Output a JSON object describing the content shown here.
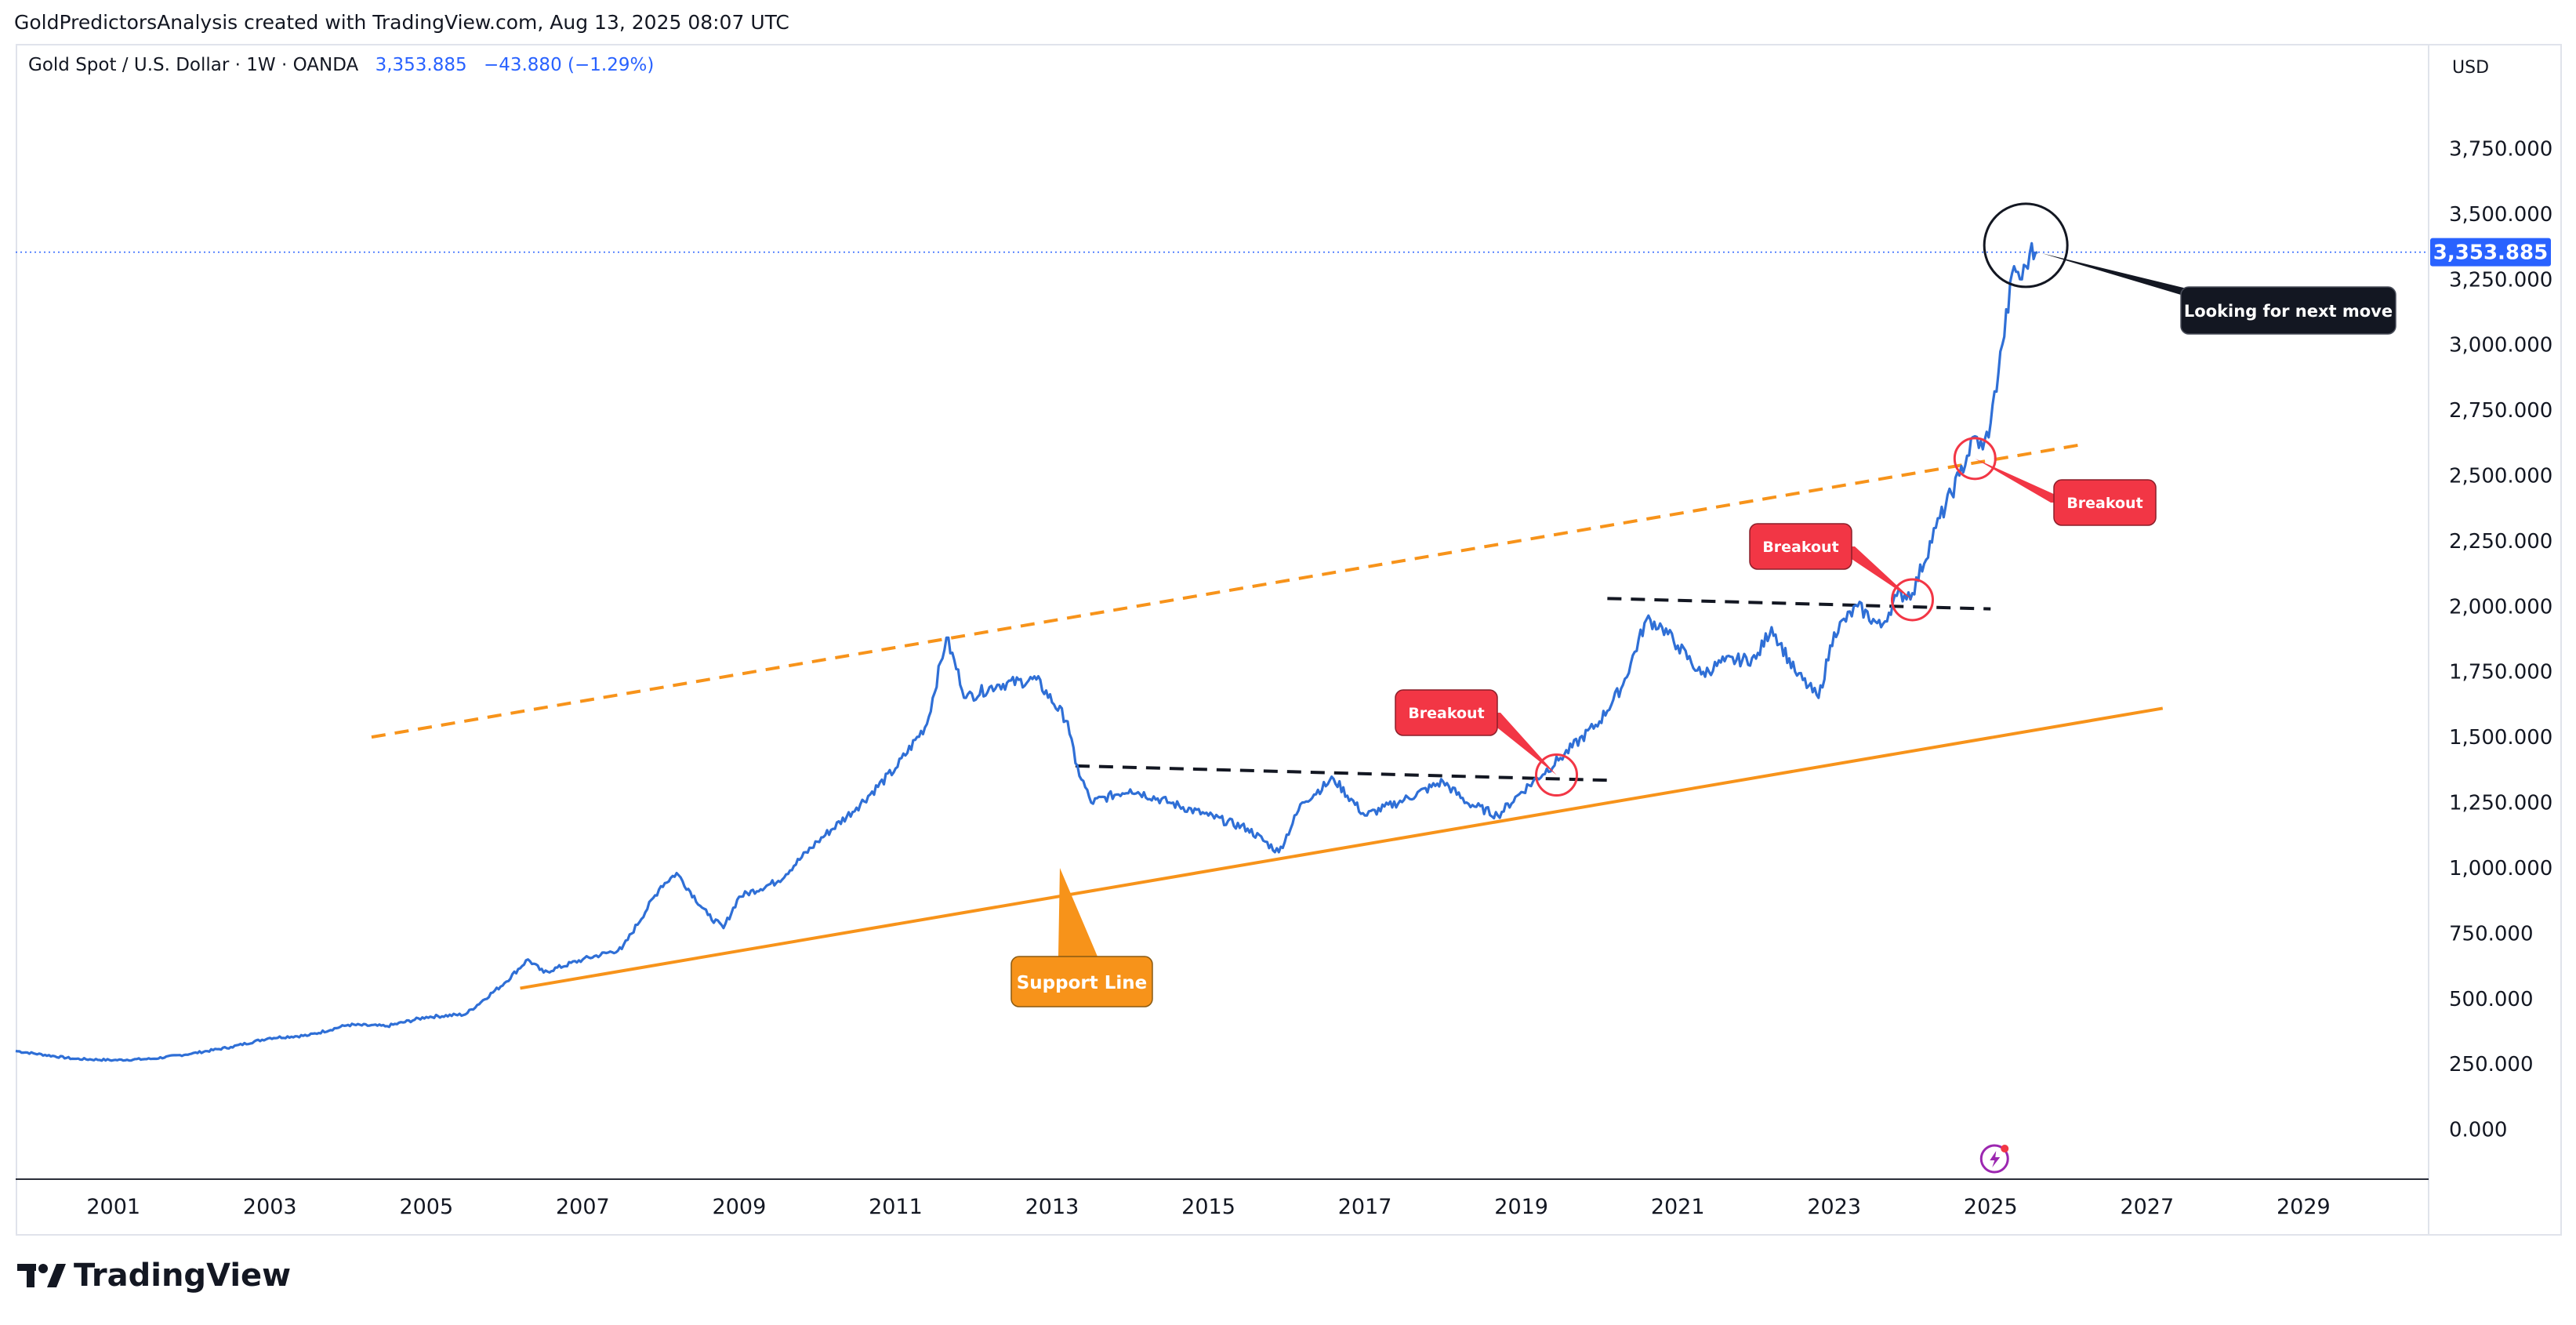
{
  "header": {
    "caption": "GoldPredictorsAnalysis created with TradingView.com, Aug 13, 2025 08:07 UTC"
  },
  "legend": {
    "symbol": "Gold Spot / U.S. Dollar · 1W · OANDA",
    "price": "3,353.885",
    "change": "−43.880 (−1.29%)"
  },
  "axis": {
    "currency": "USD",
    "price_label": "3,353.885"
  },
  "branding": {
    "logo_text": "TradingView"
  },
  "colors": {
    "price_line": "#2f6fd6",
    "support": "#f7931a",
    "annotation_red": "#f23645",
    "annotation_dark": "#131722",
    "accent_blue": "#2962ff"
  },
  "annotations": {
    "support_label": "Support Line",
    "breakout_label": "Breakout",
    "next_move_label": "Looking for next move"
  },
  "chart_data": {
    "type": "line",
    "title": "Gold Spot / U.S. Dollar · 1W · OANDA",
    "x_ticks": [
      "2001",
      "2003",
      "2005",
      "2007",
      "2009",
      "2011",
      "2013",
      "2015",
      "2017",
      "2019",
      "2021",
      "2023",
      "2025",
      "2027",
      "2029"
    ],
    "y_ticks": [
      "0.000",
      "250.000",
      "500.000",
      "750.000",
      "1,000.000",
      "1,250.000",
      "1,500.000",
      "1,750.000",
      "2,000.000",
      "2,250.000",
      "2,500.000",
      "2,750.000",
      "3,000.000",
      "3,250.000",
      "3,500.000",
      "3,750.000"
    ],
    "xlim": [
      1999.75,
      2030.6
    ],
    "ylim": [
      -190,
      4150
    ],
    "series": [
      {
        "x": [
          1999.75,
          2000.5,
          2001.0,
          2001.5,
          2002.0,
          2002.5,
          2003.0,
          2003.5,
          2004.0,
          2004.5,
          2005.0,
          2005.5,
          2006.0,
          2006.3,
          2006.5,
          2007.0,
          2007.5,
          2008.0,
          2008.2,
          2008.6,
          2008.8,
          2009.0,
          2009.5,
          2010.0,
          2010.5,
          2011.0,
          2011.4,
          2011.65,
          2011.9,
          2012.3,
          2012.8,
          2013.2,
          2013.3,
          2013.5,
          2014.0,
          2014.5,
          2015.0,
          2015.5,
          2015.9,
          2016.2,
          2016.6,
          2017.0,
          2017.5,
          2018.0,
          2018.3,
          2018.7,
          2019.0,
          2019.5,
          2020.0,
          2020.3,
          2020.6,
          2020.8,
          2021.0,
          2021.3,
          2021.6,
          2022.0,
          2022.2,
          2022.5,
          2022.8,
          2023.0,
          2023.3,
          2023.6,
          2023.8,
          2024.0,
          2024.3,
          2024.6,
          2024.8,
          2024.9,
          2025.0,
          2025.15,
          2025.3,
          2025.4,
          2025.5,
          2025.6
        ],
        "values": [
          300,
          270,
          265,
          270,
          290,
          315,
          350,
          360,
          400,
          395,
          430,
          440,
          560,
          650,
          600,
          650,
          690,
          930,
          980,
          820,
          770,
          890,
          950,
          1100,
          1230,
          1380,
          1550,
          1880,
          1650,
          1700,
          1720,
          1560,
          1400,
          1250,
          1300,
          1250,
          1200,
          1150,
          1060,
          1250,
          1340,
          1200,
          1260,
          1330,
          1250,
          1200,
          1290,
          1420,
          1560,
          1700,
          1950,
          1920,
          1850,
          1740,
          1790,
          1800,
          1920,
          1750,
          1650,
          1900,
          2000,
          1920,
          2040,
          2050,
          2300,
          2500,
          2650,
          2600,
          2700,
          3000,
          3300,
          3250,
          3350,
          3354
        ]
      }
    ],
    "support_line": {
      "x": [
        2006.2,
        2027.2
      ],
      "y": [
        540,
        1610
      ]
    },
    "upper_channel": {
      "x": [
        2004.3,
        2026.2
      ],
      "y": [
        1500,
        2620
      ]
    },
    "resistance_2013": {
      "x": [
        2013.3,
        2020.1
      ],
      "y": [
        1390,
        1335
      ]
    },
    "resistance_2021": {
      "x": [
        2020.1,
        2025.0
      ],
      "y": [
        2030,
        1990
      ]
    },
    "breakouts": [
      {
        "x": 2019.45,
        "y": 1355
      },
      {
        "x": 2024.0,
        "y": 2025
      },
      {
        "x": 2024.8,
        "y": 2565
      }
    ],
    "last_price": 3353.885
  }
}
